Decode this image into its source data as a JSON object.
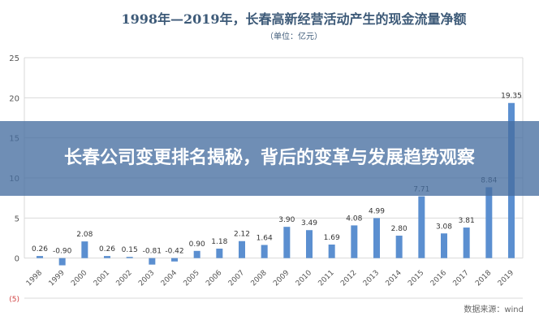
{
  "chart_data": {
    "type": "bar",
    "title": "1998年—2019年，长春高新经营活动产生的现金流量净额",
    "subtitle": "（单位：亿元）",
    "categories": [
      "1998",
      "1999",
      "2000",
      "2001",
      "2002",
      "2003",
      "2004",
      "2005",
      "2006",
      "2007",
      "2008",
      "2009",
      "2010",
      "2011",
      "2012",
      "2013",
      "2014",
      "2015",
      "2016",
      "2017",
      "2018",
      "2019"
    ],
    "values": [
      0.26,
      -0.9,
      2.08,
      0.26,
      0.15,
      -0.81,
      -0.42,
      0.9,
      1.18,
      2.12,
      1.64,
      3.9,
      3.49,
      1.69,
      4.08,
      4.99,
      2.8,
      7.71,
      3.08,
      3.81,
      8.84,
      19.35
    ],
    "data_labels": [
      "0.26",
      "-0.90",
      "2.08",
      "0.26",
      "0.15",
      "-0.81",
      "-0.42",
      "0.90",
      "1.18",
      "2.12",
      "1.64",
      "3.90",
      "3.49",
      "1.69",
      "4.08",
      "4.99",
      "2.80",
      "7.71",
      "3.08",
      "3.81",
      "8.84",
      "19.35"
    ],
    "y_ticks": [
      "25",
      "20",
      "15",
      "10",
      "5",
      "0",
      "(5)"
    ],
    "ylim": [
      -5,
      25
    ],
    "grid": true,
    "bar_color": "#5b8fd0",
    "source": "数据来源：wind"
  },
  "overlay": {
    "headline": "长春公司变更排名揭秘，背后的变革与发展趋势观察"
  }
}
